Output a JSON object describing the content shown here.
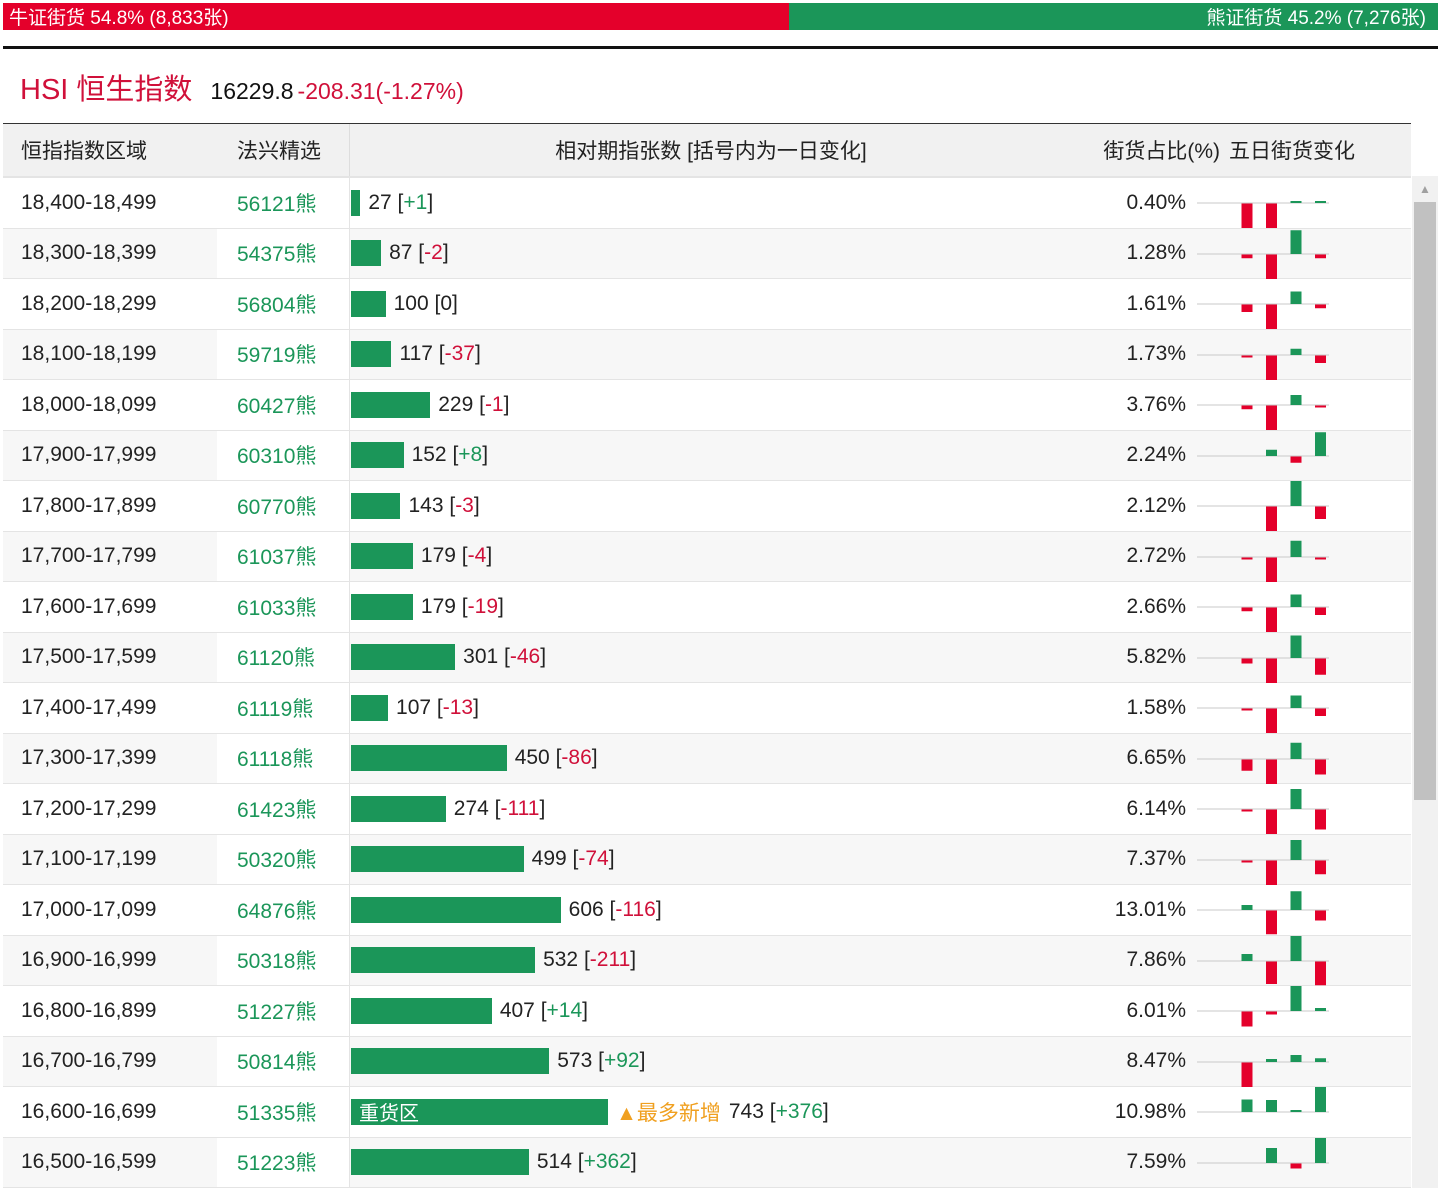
{
  "ratio": {
    "bull_label": "牛证街货 54.8% (8,833张)",
    "bear_label": "熊证街货 45.2% (7,276张)",
    "bull_pct": 54.8,
    "bull_color": "#e4002b",
    "bear_color": "#1b9659"
  },
  "index": {
    "name": "HSI 恒生指数",
    "price": "16229.8",
    "change": "-208.31(-1.27%)"
  },
  "headers": [
    "恒指指数区域",
    "法兴精选",
    "相对期指张数 [括号内为一日变化]",
    "街货占比(%)",
    "五日街货变化"
  ],
  "hot_label": "▲最多新增",
  "rows": [
    {
      "range": "18,400-18,499",
      "code": "56121熊",
      "count": 27,
      "delta": "+1",
      "share": "0.40%",
      "five": [
        0,
        -1,
        -1,
        0.08,
        0.08
      ]
    },
    {
      "range": "18,300-18,399",
      "code": "54375熊",
      "count": 87,
      "delta": "-2",
      "share": "1.28%",
      "five": [
        0,
        -0.15,
        -1,
        0.95,
        -0.15
      ]
    },
    {
      "range": "18,200-18,299",
      "code": "56804熊",
      "count": 100,
      "delta": "0",
      "share": "1.61%",
      "five": [
        0,
        -0.3,
        -1,
        0.5,
        -0.15
      ]
    },
    {
      "range": "18,100-18,199",
      "code": "59719熊",
      "count": 117,
      "delta": "-37",
      "share": "1.73%",
      "five": [
        0,
        -0.08,
        -1,
        0.25,
        -0.3
      ]
    },
    {
      "range": "18,000-18,099",
      "code": "60427熊",
      "count": 229,
      "delta": "-1",
      "share": "3.76%",
      "five": [
        0,
        -0.15,
        -1,
        0.4,
        -0.08
      ]
    },
    {
      "range": "17,900-17,999",
      "code": "60310熊",
      "count": 152,
      "delta": "+8",
      "share": "2.24%",
      "five": [
        0,
        0,
        0.25,
        -0.25,
        0.95
      ]
    },
    {
      "range": "17,800-17,899",
      "code": "60770熊",
      "count": 143,
      "delta": "-3",
      "share": "2.12%",
      "five": [
        0,
        0,
        -1,
        1,
        -0.5
      ]
    },
    {
      "range": "17,700-17,799",
      "code": "61037熊",
      "count": 179,
      "delta": "-4",
      "share": "2.72%",
      "five": [
        0,
        -0.08,
        -1,
        0.65,
        -0.08
      ]
    },
    {
      "range": "17,600-17,699",
      "code": "61033熊",
      "count": 179,
      "delta": "-19",
      "share": "2.66%",
      "five": [
        0,
        -0.15,
        -1,
        0.5,
        -0.3
      ]
    },
    {
      "range": "17,500-17,599",
      "code": "61120熊",
      "count": 301,
      "delta": "-46",
      "share": "5.82%",
      "five": [
        0,
        -0.2,
        -1,
        0.9,
        -0.65
      ]
    },
    {
      "range": "17,400-17,499",
      "code": "61119熊",
      "count": 107,
      "delta": "-13",
      "share": "1.58%",
      "five": [
        0,
        -0.08,
        -1,
        0.5,
        -0.3
      ]
    },
    {
      "range": "17,300-17,399",
      "code": "61118熊",
      "count": 450,
      "delta": "-86",
      "share": "6.65%",
      "five": [
        0,
        -0.45,
        -1,
        0.65,
        -0.6
      ]
    },
    {
      "range": "17,200-17,299",
      "code": "61423熊",
      "count": 274,
      "delta": "-111",
      "share": "6.14%",
      "five": [
        0,
        -0.05,
        -1,
        0.8,
        -0.8
      ]
    },
    {
      "range": "17,100-17,199",
      "code": "50320熊",
      "count": 499,
      "delta": "-74",
      "share": "7.37%",
      "five": [
        0,
        -0.08,
        -1,
        0.8,
        -0.55
      ]
    },
    {
      "range": "17,000-17,099",
      "code": "64876熊",
      "count": 606,
      "delta": "-116",
      "share": "13.01%",
      "five": [
        0,
        0.2,
        -0.95,
        0.75,
        -0.4
      ]
    },
    {
      "range": "16,900-16,999",
      "code": "50318熊",
      "count": 532,
      "delta": "-211",
      "share": "7.86%",
      "five": [
        0,
        0.28,
        -0.9,
        1,
        -0.95
      ]
    },
    {
      "range": "16,800-16,899",
      "code": "51227熊",
      "count": 407,
      "delta": "+14",
      "share": "6.01%",
      "five": [
        0,
        -0.6,
        -0.12,
        1,
        0.12
      ]
    },
    {
      "range": "16,700-16,799",
      "code": "50814熊",
      "count": 573,
      "delta": "+92",
      "share": "8.47%",
      "five": [
        0,
        -1,
        0.12,
        0.28,
        0.15
      ]
    },
    {
      "range": "16,600-16,699",
      "code": "51335熊",
      "count": 743,
      "delta": "+376",
      "share": "10.98%",
      "bar_label": "重货区",
      "hot": true,
      "five": [
        0,
        0.5,
        0.48,
        0.08,
        1
      ]
    },
    {
      "range": "16,500-16,599",
      "code": "51223熊",
      "count": 514,
      "delta": "+362",
      "share": "7.59%",
      "five": [
        0,
        0,
        0.6,
        -0.2,
        1
      ]
    }
  ]
}
